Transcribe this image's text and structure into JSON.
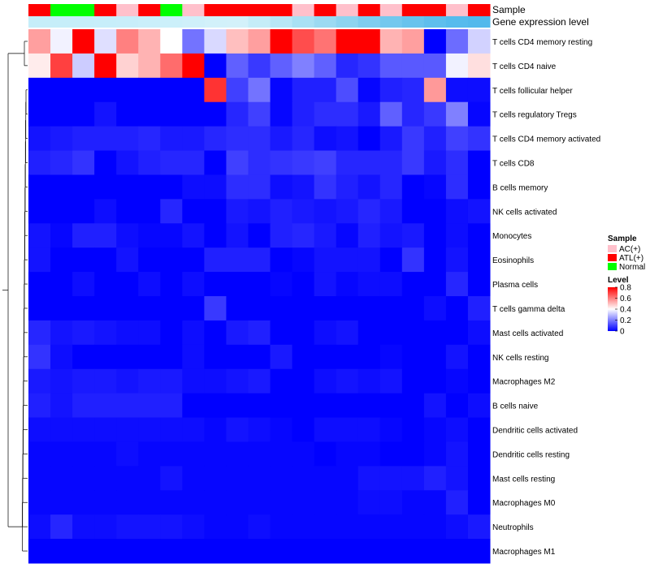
{
  "chart_data": {
    "type": "heatmap",
    "annotation_labels": {
      "sample": "Sample",
      "gene_expression": "Gene expression level"
    },
    "sample_groups": [
      "ATL(+)",
      "Normal",
      "Normal",
      "ATL(+)",
      "AC(+)",
      "ATL(+)",
      "Normal",
      "AC(+)",
      "ATL(+)",
      "ATL(+)",
      "ATL(+)",
      "ATL(+)",
      "AC(+)",
      "ATL(+)",
      "AC(+)",
      "ATL(+)",
      "AC(+)",
      "ATL(+)",
      "ATL(+)",
      "AC(+)",
      "ATL(+)"
    ],
    "rows": [
      "T cells CD4 memory resting",
      "T cells CD4 naive",
      "T cells follicular helper",
      "T cells regulatory  Tregs",
      "T cells CD4 memory activated",
      "T cells CD8",
      "B cells memory",
      "NK cells activated",
      "Monocytes",
      "Eosinophils",
      "Plasma cells",
      "T cells gamma delta",
      "Mast cells activated",
      "NK cells resting",
      "Macrophages M2",
      "B cells naive",
      "Dendritic cells activated",
      "Dendritic cells resting",
      "Mast cells resting",
      "Macrophages M0",
      "Neutrophils",
      "Macrophages M1"
    ],
    "values": [
      [
        0.55,
        0.38,
        0.8,
        0.35,
        0.6,
        0.52,
        0.4,
        0.18,
        0.34,
        0.5,
        0.55,
        0.8,
        0.68,
        0.62,
        0.8,
        0.8,
        0.52,
        0.55,
        0.0,
        0.17,
        0.33
      ],
      [
        0.43,
        0.7,
        0.32,
        0.8,
        0.47,
        0.52,
        0.63,
        0.8,
        0.0,
        0.15,
        0.09,
        0.15,
        0.2,
        0.15,
        0.06,
        0.08,
        0.14,
        0.14,
        0.14,
        0.38,
        0.45
      ],
      [
        0.0,
        0.0,
        0.0,
        0.0,
        0.0,
        0.0,
        0.0,
        0.0,
        0.72,
        0.1,
        0.18,
        0.01,
        0.05,
        0.05,
        0.12,
        0.01,
        0.05,
        0.06,
        0.56,
        0.02,
        0.02
      ],
      [
        0.0,
        0.0,
        0.0,
        0.03,
        0.0,
        0.0,
        0.0,
        0.0,
        0.0,
        0.06,
        0.1,
        0.01,
        0.05,
        0.07,
        0.07,
        0.04,
        0.15,
        0.06,
        0.09,
        0.2,
        0.01
      ],
      [
        0.03,
        0.04,
        0.05,
        0.05,
        0.05,
        0.06,
        0.04,
        0.04,
        0.06,
        0.07,
        0.07,
        0.04,
        0.06,
        0.02,
        0.03,
        0.0,
        0.04,
        0.09,
        0.05,
        0.1,
        0.08
      ],
      [
        0.05,
        0.06,
        0.08,
        0.0,
        0.03,
        0.05,
        0.06,
        0.06,
        0.0,
        0.1,
        0.07,
        0.08,
        0.09,
        0.1,
        0.06,
        0.06,
        0.06,
        0.09,
        0.04,
        0.07,
        0.0
      ],
      [
        0.0,
        0.0,
        0.0,
        0.0,
        0.0,
        0.0,
        0.0,
        0.02,
        0.02,
        0.07,
        0.07,
        0.02,
        0.03,
        0.08,
        0.05,
        0.03,
        0.06,
        0.0,
        0.01,
        0.07,
        0.0
      ],
      [
        0.0,
        0.0,
        0.0,
        0.02,
        0.0,
        0.0,
        0.06,
        0.0,
        0.0,
        0.04,
        0.03,
        0.05,
        0.04,
        0.03,
        0.04,
        0.06,
        0.04,
        0.0,
        0.0,
        0.02,
        0.03
      ],
      [
        0.03,
        0.01,
        0.05,
        0.05,
        0.02,
        0.01,
        0.01,
        0.03,
        0.0,
        0.03,
        0.0,
        0.05,
        0.06,
        0.04,
        0.01,
        0.05,
        0.03,
        0.04,
        0.0,
        0.02,
        0.0
      ],
      [
        0.03,
        0.0,
        0.0,
        0.0,
        0.03,
        0.0,
        0.0,
        0.0,
        0.05,
        0.05,
        0.05,
        0.0,
        0.01,
        0.03,
        0.03,
        0.03,
        0.0,
        0.08,
        0.0,
        0.03,
        0.0
      ],
      [
        0.0,
        0.0,
        0.02,
        0.0,
        0.0,
        0.02,
        0.0,
        0.02,
        0.0,
        0.0,
        0.0,
        0.01,
        0.0,
        0.03,
        0.01,
        0.02,
        0.02,
        0.0,
        0.0,
        0.06,
        0.0
      ],
      [
        0.0,
        0.0,
        0.0,
        0.0,
        0.0,
        0.0,
        0.0,
        0.0,
        0.09,
        0.0,
        0.0,
        0.0,
        0.0,
        0.0,
        0.0,
        0.0,
        0.0,
        0.0,
        0.02,
        0.0,
        0.05
      ],
      [
        0.06,
        0.03,
        0.04,
        0.03,
        0.02,
        0.02,
        0.0,
        0.02,
        0.0,
        0.04,
        0.05,
        0.0,
        0.0,
        0.02,
        0.03,
        0.0,
        0.0,
        0.0,
        0.0,
        0.0,
        0.02
      ],
      [
        0.08,
        0.02,
        0.0,
        0.0,
        0.0,
        0.0,
        0.0,
        0.02,
        0.0,
        0.0,
        0.0,
        0.04,
        0.0,
        0.0,
        0.0,
        0.0,
        0.01,
        0.0,
        0.0,
        0.03,
        0.0
      ],
      [
        0.04,
        0.03,
        0.04,
        0.04,
        0.03,
        0.04,
        0.04,
        0.02,
        0.02,
        0.03,
        0.04,
        0.0,
        0.0,
        0.02,
        0.03,
        0.02,
        0.03,
        0.0,
        0.0,
        0.01,
        0.0
      ],
      [
        0.05,
        0.03,
        0.05,
        0.05,
        0.05,
        0.05,
        0.05,
        0.0,
        0.0,
        0.0,
        0.0,
        0.0,
        0.0,
        0.0,
        0.0,
        0.0,
        0.0,
        0.0,
        0.03,
        0.0,
        0.02
      ],
      [
        0.02,
        0.02,
        0.02,
        0.02,
        0.02,
        0.02,
        0.02,
        0.02,
        0.01,
        0.03,
        0.02,
        0.01,
        0.0,
        0.02,
        0.02,
        0.02,
        0.01,
        0.0,
        0.01,
        0.02,
        0.0
      ],
      [
        0.01,
        0.01,
        0.01,
        0.01,
        0.02,
        0.01,
        0.01,
        0.01,
        0.01,
        0.01,
        0.01,
        0.01,
        0.01,
        0.0,
        0.01,
        0.01,
        0.0,
        0.0,
        0.01,
        0.03,
        0.0
      ],
      [
        0.01,
        0.01,
        0.01,
        0.01,
        0.01,
        0.01,
        0.03,
        0.01,
        0.01,
        0.01,
        0.01,
        0.01,
        0.01,
        0.01,
        0.01,
        0.03,
        0.03,
        0.03,
        0.05,
        0.03,
        0.0
      ],
      [
        0.01,
        0.01,
        0.01,
        0.01,
        0.01,
        0.01,
        0.01,
        0.01,
        0.01,
        0.01,
        0.01,
        0.01,
        0.01,
        0.01,
        0.01,
        0.02,
        0.02,
        0.01,
        0.01,
        0.05,
        0.0
      ],
      [
        0.02,
        0.06,
        0.02,
        0.02,
        0.03,
        0.03,
        0.03,
        0.02,
        0.01,
        0.01,
        0.02,
        0.01,
        0.01,
        0.01,
        0.01,
        0.01,
        0.01,
        0.01,
        0.01,
        0.02,
        0.04
      ],
      [
        0.0,
        0.0,
        0.0,
        0.0,
        0.0,
        0.0,
        0.0,
        0.0,
        0.0,
        0.0,
        0.0,
        0.0,
        0.0,
        0.0,
        0.0,
        0.0,
        0.0,
        0.0,
        0.0,
        0.0,
        0.0
      ]
    ],
    "gene_expression_colors": [
      "#c6eef9",
      "#c6eef9",
      "#c6eef9",
      "#c7eefa",
      "#c8eefa",
      "#caeffa",
      "#ccf0fa",
      "#cff0fa",
      "#d2f1fa",
      "#d3f1fa",
      "#c5edf8",
      "#b8e7f6",
      "#a9e1f4",
      "#9bdaf2",
      "#8dd4f0",
      "#7fcdef",
      "#73c8ee",
      "#68c3ed",
      "#5ebeed",
      "#56bbed",
      "#52b9ec"
    ],
    "color_range": [
      0,
      0.8
    ],
    "colors": {
      "low": "#0000ff",
      "mid": "#ffffff",
      "high": "#ff0000"
    },
    "legend": {
      "sample": {
        "title": "Sample",
        "items": [
          {
            "label": "AC(+)",
            "color": "#ffc0cb"
          },
          {
            "label": "ATL(+)",
            "color": "#ff0000"
          },
          {
            "label": "Normal",
            "color": "#00ff00"
          }
        ]
      },
      "level": {
        "title": "Level",
        "ticks": [
          {
            "value": 0.8,
            "label": "0.8"
          },
          {
            "value": 0.6,
            "label": "0.6"
          },
          {
            "value": 0.4,
            "label": "0.4"
          },
          {
            "value": 0.2,
            "label": "0.2"
          },
          {
            "value": 0,
            "label": "0"
          }
        ]
      }
    }
  }
}
